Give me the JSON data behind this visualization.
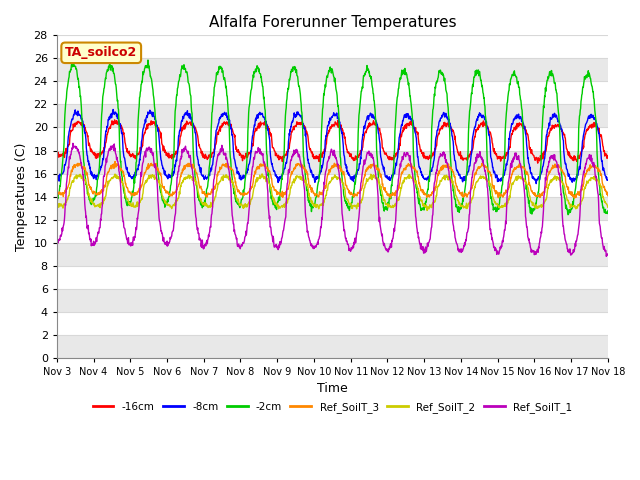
{
  "title": "Alfalfa Forerunner Temperatures",
  "ylabel": "Temperatures (C)",
  "xlabel": "Time",
  "annotation": "TA_soilco2",
  "annotation_color": "#cc0000",
  "annotation_bg": "#ffffcc",
  "annotation_edge": "#cc8800",
  "ylim": [
    0,
    28
  ],
  "yticks": [
    0,
    2,
    4,
    6,
    8,
    10,
    12,
    14,
    16,
    18,
    20,
    22,
    24,
    26,
    28
  ],
  "n_days": 15,
  "series_colors": [
    "#ff0000",
    "#0000ff",
    "#00cc00",
    "#ff8800",
    "#cccc00",
    "#bb00bb"
  ],
  "series_labels": [
    "-16cm",
    "-8cm",
    "-2cm",
    "Ref_SoilT_3",
    "Ref_SoilT_2",
    "Ref_SoilT_1"
  ],
  "bg_color": "#ffffff",
  "plot_bg": "#ffffff",
  "grid_color": "#d8d8d8",
  "xtick_labels": [
    "Nov 3",
    "Nov 4",
    "Nov 5",
    "Nov 6",
    "Nov 7",
    "Nov 8",
    "Nov 9",
    "Nov 10",
    "Nov 11",
    "Nov 12",
    "Nov 13",
    "Nov 14",
    "Nov 15",
    "Nov 16",
    "Nov 17",
    "Nov 18"
  ],
  "linewidth": 1.0,
  "title_fontsize": 11,
  "label_fontsize": 9,
  "tick_fontsize": 8
}
